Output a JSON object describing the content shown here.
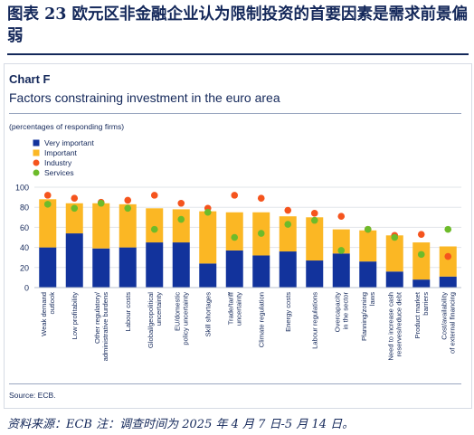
{
  "heading": "图表 23   欧元区非金融企业认为限制投资的首要因素是需求前景偏弱",
  "footer_note": "资料来源：ECB    注：调查时间为 2025 年 4 月 7 日-5 月 14 日。",
  "colors": {
    "very_important": "#12339c",
    "important": "#fbb724",
    "industry": "#f5541d",
    "services": "#6dbb2a",
    "navy_text": "#14285a"
  },
  "chart_data": {
    "type": "bar",
    "label": "Chart F",
    "title": "Factors constraining investment in the euro area",
    "unit_note": "(percentages of responding firms)",
    "source": "Source: ECB.",
    "ylim": [
      0,
      100
    ],
    "yticks": [
      0,
      20,
      40,
      60,
      80,
      100
    ],
    "grid": true,
    "legend_position": "top-left",
    "categories": [
      [
        "Weak demand",
        "outlook"
      ],
      [
        "Low profitability"
      ],
      [
        "Other regulatory/",
        "administrative burdens"
      ],
      [
        "Labour costs"
      ],
      [
        "Global/geopolitical",
        "uncertainty"
      ],
      [
        "EU/domestic",
        "policy uncertainty"
      ],
      [
        "Skill shortages"
      ],
      [
        "Trade/tariff",
        "uncertainty"
      ],
      [
        "Climate regulation"
      ],
      [
        "Energy costs"
      ],
      [
        "Labour regulations"
      ],
      [
        "Overcapacity",
        "in the sector"
      ],
      [
        "Planning/zoning",
        "laws"
      ],
      [
        "Need to increase cash",
        "reserves/reduce debt"
      ],
      [
        "Product market",
        "barriers"
      ],
      [
        "Cost/availability",
        "of external financing"
      ]
    ],
    "series": [
      {
        "name": "Very important",
        "kind": "bar",
        "values": [
          40,
          54,
          39,
          40,
          45,
          45,
          24,
          37,
          32,
          36,
          27,
          34,
          26,
          16,
          8,
          11
        ]
      },
      {
        "name": "Important",
        "kind": "bar",
        "values": [
          48,
          30,
          45,
          43,
          34,
          33,
          52,
          38,
          43,
          35,
          43,
          24,
          31,
          36,
          37,
          30
        ]
      },
      {
        "name": "Industry",
        "kind": "dot",
        "values": [
          92,
          89,
          85,
          87,
          92,
          84,
          79,
          92,
          89,
          77,
          74,
          71,
          58,
          52,
          53,
          31
        ]
      },
      {
        "name": "Services",
        "kind": "dot",
        "values": [
          83,
          79,
          84,
          79,
          58,
          68,
          75,
          50,
          54,
          63,
          67,
          37,
          58,
          50,
          33,
          58
        ]
      }
    ]
  }
}
